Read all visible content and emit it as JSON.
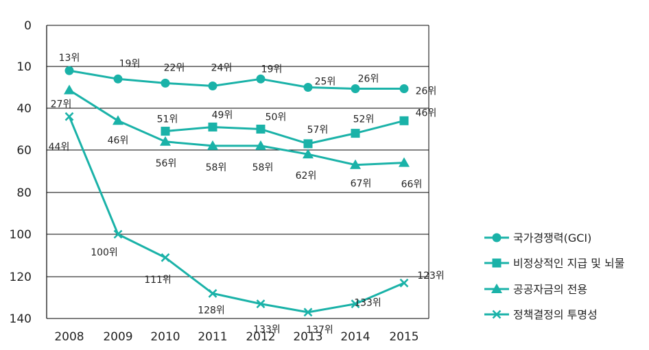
{
  "chart_data": {
    "type": "line",
    "title": "",
    "xlabel": "",
    "ylabel": "",
    "y_axis_inverted": true,
    "x": [
      "2008",
      "2009",
      "2010",
      "2011",
      "2012",
      "2013",
      "2014",
      "2015"
    ],
    "y_ticks": [
      "0",
      "10",
      "40",
      "60",
      "80",
      "100",
      "120",
      "140"
    ],
    "grid": true,
    "legend_position": "right",
    "color": "#1ab2a8",
    "series": [
      {
        "name": "국가경쟁력(GCI)",
        "marker": "circle",
        "values": [
          13,
          19,
          22,
          24,
          19,
          25,
          26,
          26
        ],
        "labels": [
          "13위",
          "19위",
          "22위",
          "24위",
          "19위",
          "25위",
          "26위",
          "26위"
        ]
      },
      {
        "name": "비정상적인 지급 및 뇌물",
        "marker": "square",
        "values": [
          null,
          null,
          51,
          49,
          50,
          57,
          52,
          46
        ],
        "labels": [
          "",
          "",
          "51위",
          "49위",
          "50위",
          "57위",
          "52위",
          "46위"
        ]
      },
      {
        "name": "공공자금의 전용",
        "marker": "triangle",
        "values": [
          27,
          46,
          56,
          58,
          58,
          62,
          67,
          66
        ],
        "labels": [
          "27위",
          "46위",
          "56위",
          "58위",
          "58위",
          "62위",
          "67위",
          "66위"
        ]
      },
      {
        "name": "정책결정의 투명성",
        "marker": "x",
        "values": [
          44,
          100,
          111,
          128,
          133,
          137,
          133,
          123
        ],
        "labels": [
          "44위",
          "100위",
          "111위",
          "128위",
          "133위",
          "137위",
          "133위",
          "123위"
        ]
      }
    ]
  }
}
